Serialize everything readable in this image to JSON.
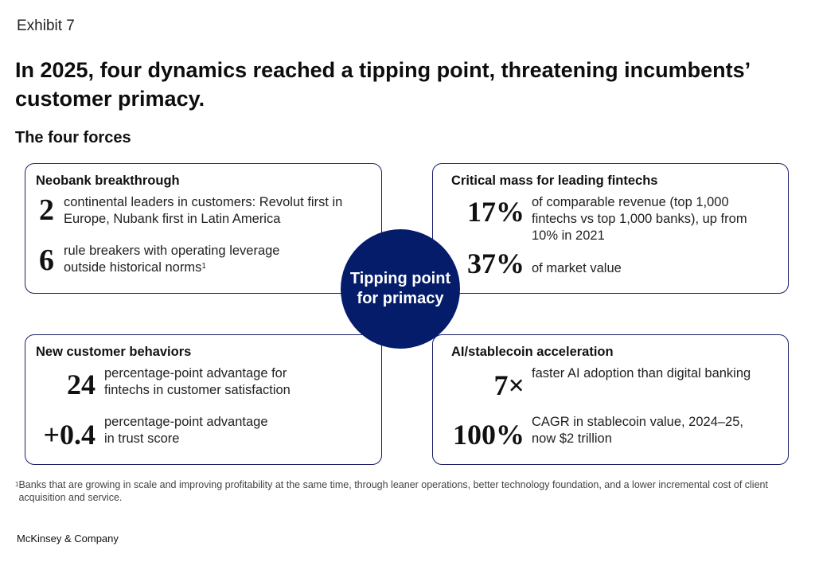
{
  "exhibit": "Exhibit 7",
  "title": "In 2025, four dynamics reached a tipping point, threatening incumbents’ customer primacy.",
  "subtitle": "The four forces",
  "center_label": "Tipping point for primacy",
  "quadrants": {
    "neobank": {
      "title": "Neobank breakthrough",
      "items": [
        {
          "value": "2",
          "text": "continental leaders in customers: Revolut first in Europe, Nubank first in Latin America"
        },
        {
          "value": "6",
          "text": "rule breakers with operating leverage outside historical norms",
          "sup": "1"
        }
      ]
    },
    "fintech": {
      "title": "Critical mass for leading fintechs",
      "items": [
        {
          "value": "17%",
          "text": "of comparable revenue (top 1,000 fintechs vs top 1,000 banks), up from 10% in 2021"
        },
        {
          "value": "37%",
          "text": "of market value"
        }
      ]
    },
    "behaviors": {
      "title": "New customer behaviors",
      "items": [
        {
          "value": "24",
          "text": "percentage-point advantage for fintechs in customer satisfaction"
        },
        {
          "value": "+0.4",
          "text": "percentage-point advantage in trust score"
        }
      ]
    },
    "ai": {
      "title": "AI/stablecoin acceleration",
      "items": [
        {
          "value": "7×",
          "text": "faster AI adoption than digital banking"
        },
        {
          "value": "100%",
          "text": "CAGR in stablecoin value, 2024–25, now $2 trillion"
        }
      ]
    }
  },
  "footnote": {
    "marker": "1",
    "text": "Banks that are growing in scale and improving profitability at the same time, through leaner operations, better technology foundation, and a lower incremental cost of client acquisition and service."
  },
  "brand": "McKinsey & Company",
  "colors": {
    "accent": "#051c6b",
    "border": "#1a1f66"
  }
}
